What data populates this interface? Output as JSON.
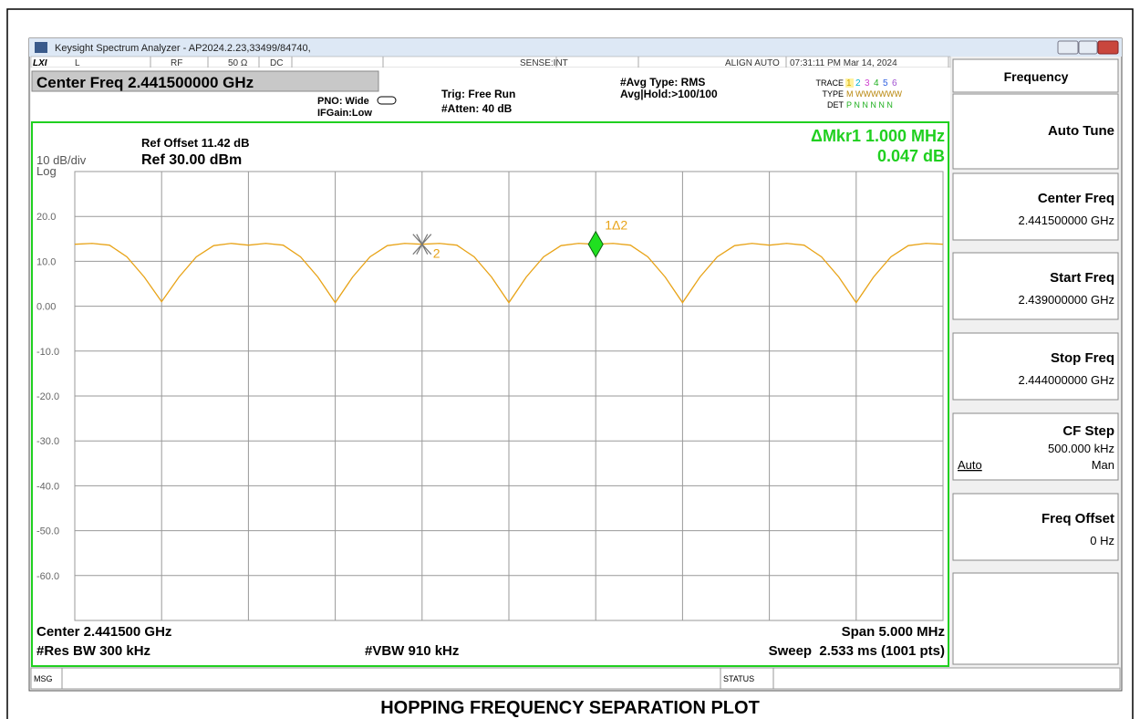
{
  "window": {
    "title": "Keysight Spectrum Analyzer - AP2024.2.23,33499/84740,"
  },
  "status_bar": {
    "logo": "LXI",
    "items": [
      "L",
      "RF",
      "50 Ω",
      "DC",
      "SENSE:INT",
      "ALIGN AUTO",
      "07:31:11 PM Mar 14, 2024"
    ]
  },
  "settings": {
    "center_freq": "Center Freq 2.441500000 GHz",
    "pno": "PNO: Wide",
    "ifgain": "IFGain:Low",
    "trig": "Trig: Free Run",
    "atten": "#Atten: 40 dB",
    "avg_type": "#Avg Type: RMS",
    "avg_hold": "Avg|Hold:>100/100",
    "trace_label": "TRACE",
    "trace_numbers": [
      "1",
      "2",
      "3",
      "4",
      "5",
      "6"
    ],
    "type_label": "TYPE",
    "type_value": "M WWWWWW",
    "det_label": "DET",
    "det_value": "P N N N N N"
  },
  "plot": {
    "ref_offset": "Ref Offset 11.42 dB",
    "scale": "10 dB/div",
    "ref_level": "Ref 30.00 dBm",
    "scale_type": "Log",
    "marker_readout": [
      "ΔMkr1 1.000 MHz",
      "0.047 dB"
    ],
    "center": "Center 2.441500 GHz",
    "span": "Span 5.000 MHz",
    "rbw": "#Res BW 300 kHz",
    "vbw": "#VBW 910 kHz",
    "sweep": "Sweep  2.533 ms (1001 pts)"
  },
  "chart_data": {
    "type": "line",
    "xlim": [
      2.439,
      2.444
    ],
    "ylim": [
      -70,
      30
    ],
    "xticks": [
      2.439,
      2.4395,
      2.44,
      2.4405,
      2.441,
      2.4415,
      2.442,
      2.4425,
      2.443,
      2.4435,
      2.444
    ],
    "yticks": [
      {
        "value": 20,
        "label": "20.0"
      },
      {
        "value": 10,
        "label": "10.0"
      },
      {
        "value": 0,
        "label": "0.00"
      },
      {
        "value": -10,
        "label": "-10.0"
      },
      {
        "value": -20,
        "label": "-20.0"
      },
      {
        "value": -30,
        "label": "-30.0"
      },
      {
        "value": -40,
        "label": "-40.0"
      },
      {
        "value": -50,
        "label": "-50.0"
      },
      {
        "value": -60,
        "label": "-60.0"
      }
    ],
    "grid": true,
    "series": [
      {
        "color": "#e8a317",
        "x": [
          2.439,
          2.4391,
          2.4392,
          2.4393,
          2.4394,
          2.4395,
          2.4396,
          2.4397,
          2.4398,
          2.4399,
          2.44,
          2.4401,
          2.4402,
          2.4403,
          2.4404,
          2.4405,
          2.4406,
          2.4407,
          2.4408,
          2.4409,
          2.441,
          2.4411,
          2.4412,
          2.4413,
          2.4414,
          2.4415,
          2.4416,
          2.4417,
          2.4418,
          2.4419,
          2.442,
          2.4421,
          2.4422,
          2.4423,
          2.4424,
          2.4425,
          2.4426,
          2.4427,
          2.4428,
          2.4429,
          2.443,
          2.4431,
          2.4432,
          2.4433,
          2.4434,
          2.4435,
          2.4436,
          2.4437,
          2.4438,
          2.4439,
          2.444
        ],
        "values": [
          13.8,
          14.0,
          13.6,
          11.0,
          6.5,
          1.0,
          6.5,
          11.0,
          13.5,
          14.0,
          13.6,
          14.0,
          13.6,
          11.0,
          6.5,
          0.8,
          6.5,
          11.0,
          13.5,
          14.0,
          13.8,
          14.0,
          13.6,
          11.0,
          6.5,
          0.8,
          6.5,
          11.0,
          13.5,
          14.0,
          13.8,
          14.0,
          13.6,
          11.0,
          6.5,
          0.8,
          6.5,
          11.0,
          13.5,
          14.0,
          13.6,
          14.0,
          13.6,
          11.0,
          6.5,
          0.8,
          6.5,
          11.0,
          13.5,
          14.0,
          13.8
        ]
      }
    ],
    "markers": [
      {
        "label": "2",
        "x": 2.441,
        "y": 13.8
      },
      {
        "label": "1Δ2",
        "x": 2.442,
        "y": 13.8
      }
    ]
  },
  "softkeys": {
    "menu": "Frequency",
    "keys": [
      {
        "label": "Auto Tune"
      },
      {
        "label": "Center Freq",
        "value": "2.441500000 GHz"
      },
      {
        "label": "Start Freq",
        "value": "2.439000000 GHz"
      },
      {
        "label": "Stop Freq",
        "value": "2.444000000 GHz"
      },
      {
        "label": "CF Step",
        "value": "500.000 kHz",
        "options": [
          "Auto",
          "Man"
        ]
      },
      {
        "label": "Freq Offset",
        "value": "0 Hz"
      }
    ]
  },
  "message_bar": {
    "msg": "MSG",
    "status": "STATUS"
  },
  "caption": "HOPPING FREQUENCY SEPARATION PLOT"
}
